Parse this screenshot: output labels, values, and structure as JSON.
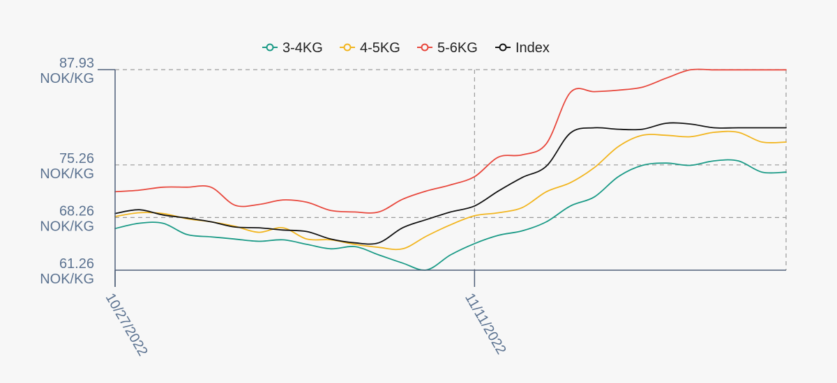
{
  "chart_data": {
    "type": "line",
    "title": "",
    "xlabel": "",
    "ylabel": "",
    "x": [
      "10/27/2022",
      "10/28/2022",
      "10/29/2022",
      "10/30/2022",
      "10/31/2022",
      "11/01/2022",
      "11/02/2022",
      "11/03/2022",
      "11/04/2022",
      "11/05/2022",
      "11/06/2022",
      "11/07/2022",
      "11/08/2022",
      "11/09/2022",
      "11/10/2022",
      "11/11/2022",
      "11/12/2022",
      "11/13/2022",
      "11/14/2022",
      "11/15/2022",
      "11/16/2022",
      "11/17/2022",
      "11/18/2022",
      "11/19/2022",
      "11/20/2022",
      "11/21/2022",
      "11/22/2022",
      "11/23/2022",
      "11/24/2022"
    ],
    "x_tick_labels": [
      "10/27/2022",
      "11/11/2022"
    ],
    "y_ticks": [
      {
        "value": 61.26,
        "label1": "61.26",
        "label2": "NOK/KG"
      },
      {
        "value": 68.26,
        "label1": "68.26",
        "label2": "NOK/KG"
      },
      {
        "value": 75.26,
        "label1": "75.26",
        "label2": "NOK/KG"
      },
      {
        "value": 87.93,
        "label1": "87.93",
        "label2": "NOK/KG"
      }
    ],
    "ylim": [
      61.26,
      87.93
    ],
    "grid": true,
    "legend_position": "top",
    "series": [
      {
        "name": "3-4KG",
        "color": "#1a9a86",
        "values": [
          66.8,
          67.5,
          67.5,
          66.0,
          65.7,
          65.4,
          65.1,
          65.3,
          64.7,
          64.1,
          64.4,
          63.3,
          62.2,
          61.3,
          63.3,
          64.8,
          65.9,
          66.5,
          67.7,
          69.8,
          71.0,
          73.7,
          75.2,
          75.5,
          75.2,
          75.8,
          75.8,
          74.3,
          74.3
        ]
      },
      {
        "name": "4-5KG",
        "color": "#f2b51e",
        "values": [
          68.4,
          68.9,
          68.8,
          68.1,
          67.7,
          67.1,
          66.3,
          66.9,
          65.4,
          65.3,
          64.7,
          64.3,
          64.1,
          65.8,
          67.3,
          68.5,
          68.9,
          69.6,
          71.7,
          72.9,
          74.9,
          77.7,
          79.2,
          79.2,
          79.0,
          79.6,
          79.6,
          78.3,
          78.3
        ]
      },
      {
        "name": "5-6KG",
        "color": "#e8473c",
        "values": [
          71.7,
          71.9,
          72.3,
          72.3,
          72.3,
          69.9,
          70.0,
          70.6,
          70.3,
          69.2,
          69.0,
          69.0,
          70.7,
          71.8,
          72.6,
          73.7,
          76.3,
          76.6,
          78.1,
          84.9,
          85.0,
          85.2,
          85.6,
          86.8,
          87.9,
          87.9,
          87.9,
          87.9,
          87.9
        ]
      },
      {
        "name": "Index",
        "color": "#111111",
        "values": [
          68.8,
          69.3,
          68.6,
          68.2,
          67.7,
          67.0,
          66.9,
          66.6,
          66.4,
          65.4,
          64.9,
          64.9,
          66.9,
          68.0,
          69.0,
          69.8,
          71.8,
          73.6,
          75.1,
          79.5,
          80.2,
          80.0,
          80.0,
          80.8,
          80.7,
          80.2,
          80.2,
          80.2,
          80.2
        ]
      }
    ]
  }
}
